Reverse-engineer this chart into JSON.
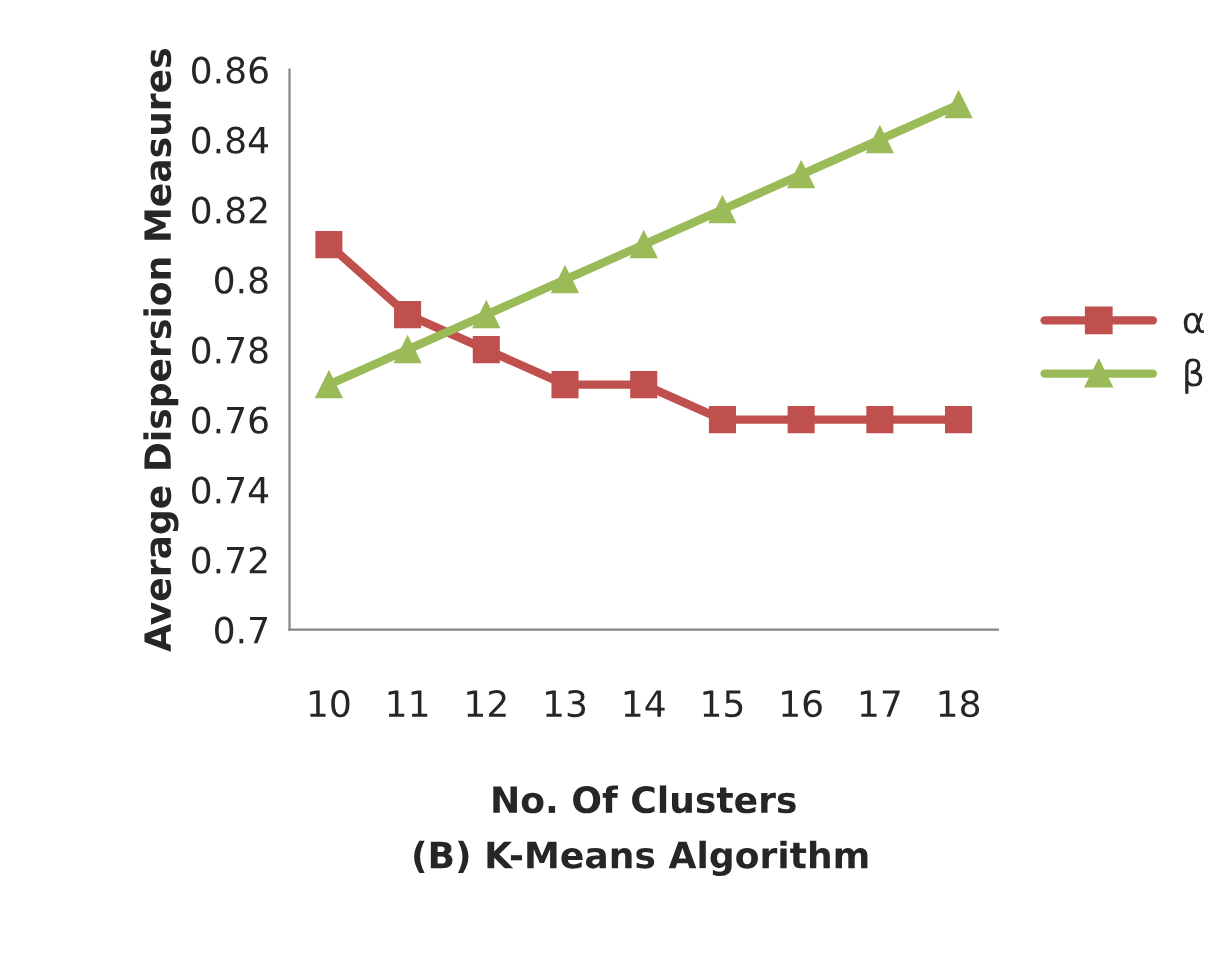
{
  "chart_data": {
    "type": "line",
    "xlabel": "No. Of Clusters",
    "ylabel": "Average Dispersion Measures",
    "annotations": [
      "(B) K-Means Algorithm"
    ],
    "categories": [
      "10",
      "11",
      "12",
      "13",
      "14",
      "15",
      "16",
      "17",
      "18"
    ],
    "series": [
      {
        "name": "α",
        "color": "#c0504d",
        "marker": "square",
        "values": [
          0.81,
          0.79,
          0.78,
          0.77,
          0.77,
          0.76,
          0.76,
          0.76,
          0.76
        ]
      },
      {
        "name": "β",
        "color": "#9bbb59",
        "marker": "triangle",
        "values": [
          0.77,
          0.78,
          0.79,
          0.8,
          0.81,
          0.82,
          0.83,
          0.84,
          0.85
        ]
      }
    ],
    "ylim": [
      0.7,
      0.86
    ],
    "yticks": [
      0.7,
      0.72,
      0.74,
      0.76,
      0.78,
      0.8,
      0.82,
      0.84,
      0.86
    ],
    "grid": false,
    "legend": "right",
    "line_style": "solid"
  }
}
